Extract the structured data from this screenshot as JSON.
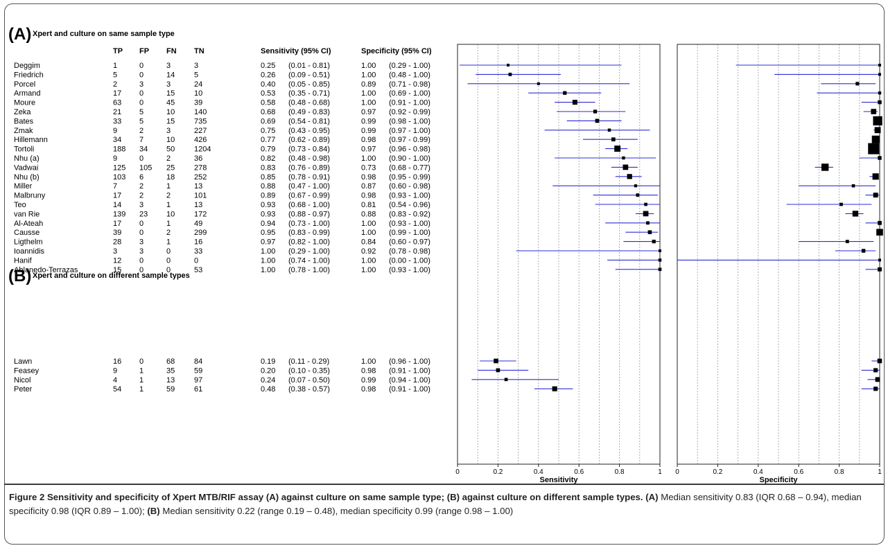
{
  "chart_data": {
    "type": "forest",
    "sections": [
      {
        "letter": "(A)",
        "title": "Xpert and culture on same sample type",
        "studies": [
          {
            "study": "Deggim",
            "tp": "1",
            "fp": "0",
            "fn": "3",
            "tn": "3",
            "sens": "0.25",
            "sens_ci": "(0.01 - 0.81)",
            "spec": "1.00",
            "spec_ci": "(0.29 - 1.00)",
            "sens_v": 0.25,
            "sens_lo": 0.01,
            "sens_hi": 0.81,
            "spec_v": 1.0,
            "spec_lo": 0.29,
            "spec_hi": 1.0
          },
          {
            "study": "Friedrich",
            "tp": "5",
            "fp": "0",
            "fn": "14",
            "tn": "5",
            "sens": "0.26",
            "sens_ci": "(0.09 - 0.51)",
            "spec": "1.00",
            "spec_ci": "(0.48 - 1.00)",
            "sens_v": 0.26,
            "sens_lo": 0.09,
            "sens_hi": 0.51,
            "spec_v": 1.0,
            "spec_lo": 0.48,
            "spec_hi": 1.0
          },
          {
            "study": "Porcel",
            "tp": "2",
            "fp": "3",
            "fn": "3",
            "tn": "24",
            "sens": "0.40",
            "sens_ci": "(0.05 - 0.85)",
            "spec": "0.89",
            "spec_ci": "(0.71 - 0.98)",
            "sens_v": 0.4,
            "sens_lo": 0.05,
            "sens_hi": 0.85,
            "spec_v": 0.89,
            "spec_lo": 0.71,
            "spec_hi": 0.98
          },
          {
            "study": "Armand",
            "tp": "17",
            "fp": "0",
            "fn": "15",
            "tn": "10",
            "sens": "0.53",
            "sens_ci": "(0.35 - 0.71)",
            "spec": "1.00",
            "spec_ci": "(0.69 - 1.00)",
            "sens_v": 0.53,
            "sens_lo": 0.35,
            "sens_hi": 0.71,
            "spec_v": 1.0,
            "spec_lo": 0.69,
            "spec_hi": 1.0
          },
          {
            "study": "Moure",
            "tp": "63",
            "fp": "0",
            "fn": "45",
            "tn": "39",
            "sens": "0.58",
            "sens_ci": "(0.48 - 0.68)",
            "spec": "1.00",
            "spec_ci": "(0.91 - 1.00)",
            "sens_v": 0.58,
            "sens_lo": 0.48,
            "sens_hi": 0.68,
            "spec_v": 1.0,
            "spec_lo": 0.91,
            "spec_hi": 1.0
          },
          {
            "study": "Zeka",
            "tp": "21",
            "fp": "5",
            "fn": "10",
            "tn": "140",
            "sens": "0.68",
            "sens_ci": "(0.49 - 0.83)",
            "spec": "0.97",
            "spec_ci": "(0.92 - 0.99)",
            "sens_v": 0.68,
            "sens_lo": 0.49,
            "sens_hi": 0.83,
            "spec_v": 0.97,
            "spec_lo": 0.92,
            "spec_hi": 0.99
          },
          {
            "study": "Bates",
            "tp": "33",
            "fp": "5",
            "fn": "15",
            "tn": "735",
            "sens": "0.69",
            "sens_ci": "(0.54 - 0.81)",
            "spec": "0.99",
            "spec_ci": "(0.98 - 1.00)",
            "sens_v": 0.69,
            "sens_lo": 0.54,
            "sens_hi": 0.81,
            "spec_v": 0.99,
            "spec_lo": 0.98,
            "spec_hi": 1.0
          },
          {
            "study": "Zmak",
            "tp": "9",
            "fp": "2",
            "fn": "3",
            "tn": "227",
            "sens": "0.75",
            "sens_ci": "(0.43 - 0.95)",
            "spec": "0.99",
            "spec_ci": "(0.97 - 1.00)",
            "sens_v": 0.75,
            "sens_lo": 0.43,
            "sens_hi": 0.95,
            "spec_v": 0.99,
            "spec_lo": 0.97,
            "spec_hi": 1.0
          },
          {
            "study": "Hillemann",
            "tp": "34",
            "fp": "7",
            "fn": "10",
            "tn": "426",
            "sens": "0.77",
            "sens_ci": "(0.62 - 0.89)",
            "spec": "0.98",
            "spec_ci": "(0.97 - 0.99)",
            "sens_v": 0.77,
            "sens_lo": 0.62,
            "sens_hi": 0.89,
            "spec_v": 0.98,
            "spec_lo": 0.97,
            "spec_hi": 0.99
          },
          {
            "study": "Tortoli",
            "tp": "188",
            "fp": "34",
            "fn": "50",
            "tn": "1204",
            "sens": "0.79",
            "sens_ci": "(0.73 - 0.84)",
            "spec": "0.97",
            "spec_ci": "(0.96 - 0.98)",
            "sens_v": 0.79,
            "sens_lo": 0.73,
            "sens_hi": 0.84,
            "spec_v": 0.97,
            "spec_lo": 0.96,
            "spec_hi": 0.98
          },
          {
            "study": "Nhu (a)",
            "tp": "9",
            "fp": "0",
            "fn": "2",
            "tn": "36",
            "sens": "0.82",
            "sens_ci": "(0.48 - 0.98)",
            "spec": "1.00",
            "spec_ci": "(0.90 - 1.00)",
            "sens_v": 0.82,
            "sens_lo": 0.48,
            "sens_hi": 0.98,
            "spec_v": 1.0,
            "spec_lo": 0.9,
            "spec_hi": 1.0
          },
          {
            "study": "Vadwai",
            "tp": "125",
            "fp": "105",
            "fn": "25",
            "tn": "278",
            "sens": "0.83",
            "sens_ci": "(0.76 - 0.89)",
            "spec": "0.73",
            "spec_ci": "(0.68 - 0.77)",
            "sens_v": 0.83,
            "sens_lo": 0.76,
            "sens_hi": 0.89,
            "spec_v": 0.73,
            "spec_lo": 0.68,
            "spec_hi": 0.77
          },
          {
            "study": "Nhu (b)",
            "tp": "103",
            "fp": "6",
            "fn": "18",
            "tn": "252",
            "sens": "0.85",
            "sens_ci": "(0.78 - 0.91)",
            "spec": "0.98",
            "spec_ci": "(0.95 - 0.99)",
            "sens_v": 0.85,
            "sens_lo": 0.78,
            "sens_hi": 0.91,
            "spec_v": 0.98,
            "spec_lo": 0.95,
            "spec_hi": 0.99
          },
          {
            "study": "Miller",
            "tp": "7",
            "fp": "2",
            "fn": "1",
            "tn": "13",
            "sens": "0.88",
            "sens_ci": "(0.47 - 1.00)",
            "spec": "0.87",
            "spec_ci": "(0.60 - 0.98)",
            "sens_v": 0.88,
            "sens_lo": 0.47,
            "sens_hi": 1.0,
            "spec_v": 0.87,
            "spec_lo": 0.6,
            "spec_hi": 0.98
          },
          {
            "study": "Malbruny",
            "tp": "17",
            "fp": "2",
            "fn": "2",
            "tn": "101",
            "sens": "0.89",
            "sens_ci": "(0.67 - 0.99)",
            "spec": "0.98",
            "spec_ci": "(0.93 - 1.00)",
            "sens_v": 0.89,
            "sens_lo": 0.67,
            "sens_hi": 0.99,
            "spec_v": 0.98,
            "spec_lo": 0.93,
            "spec_hi": 1.0
          },
          {
            "study": "Teo",
            "tp": "14",
            "fp": "3",
            "fn": "1",
            "tn": "13",
            "sens": "0.93",
            "sens_ci": "(0.68 - 1.00)",
            "spec": "0.81",
            "spec_ci": "(0.54 - 0.96)",
            "sens_v": 0.93,
            "sens_lo": 0.68,
            "sens_hi": 1.0,
            "spec_v": 0.81,
            "spec_lo": 0.54,
            "spec_hi": 0.96
          },
          {
            "study": "van Rie",
            "tp": "139",
            "fp": "23",
            "fn": "10",
            "tn": "172",
            "sens": "0.93",
            "sens_ci": "(0.88 - 0.97)",
            "spec": "0.88",
            "spec_ci": "(0.83 - 0.92)",
            "sens_v": 0.93,
            "sens_lo": 0.88,
            "sens_hi": 0.97,
            "spec_v": 0.88,
            "spec_lo": 0.83,
            "spec_hi": 0.92
          },
          {
            "study": "Al-Ateah",
            "tp": "17",
            "fp": "0",
            "fn": "1",
            "tn": "49",
            "sens": "0.94",
            "sens_ci": "(0.73 - 1.00)",
            "spec": "1.00",
            "spec_ci": "(0.93 - 1.00)",
            "sens_v": 0.94,
            "sens_lo": 0.73,
            "sens_hi": 1.0,
            "spec_v": 1.0,
            "spec_lo": 0.93,
            "spec_hi": 1.0
          },
          {
            "study": "Causse",
            "tp": "39",
            "fp": "0",
            "fn": "2",
            "tn": "299",
            "sens": "0.95",
            "sens_ci": "(0.83 - 0.99)",
            "spec": "1.00",
            "spec_ci": "(0.99 - 1.00)",
            "sens_v": 0.95,
            "sens_lo": 0.83,
            "sens_hi": 0.99,
            "spec_v": 1.0,
            "spec_lo": 0.99,
            "spec_hi": 1.0
          },
          {
            "study": "Ligthelm",
            "tp": "28",
            "fp": "3",
            "fn": "1",
            "tn": "16",
            "sens": "0.97",
            "sens_ci": "(0.82 - 1.00)",
            "spec": "0.84",
            "spec_ci": "(0.60 - 0.97)",
            "sens_v": 0.97,
            "sens_lo": 0.82,
            "sens_hi": 1.0,
            "spec_v": 0.84,
            "spec_lo": 0.6,
            "spec_hi": 0.97
          },
          {
            "study": "Ioannidis",
            "tp": "3",
            "fp": "3",
            "fn": "0",
            "tn": "33",
            "sens": "1.00",
            "sens_ci": "(0.29 - 1.00)",
            "spec": "0.92",
            "spec_ci": "(0.78 - 0.98)",
            "sens_v": 1.0,
            "sens_lo": 0.29,
            "sens_hi": 1.0,
            "spec_v": 0.92,
            "spec_lo": 0.78,
            "spec_hi": 0.98
          },
          {
            "study": "Hanif",
            "tp": "12",
            "fp": "0",
            "fn": "0",
            "tn": "0",
            "sens": "1.00",
            "sens_ci": "(0.74 - 1.00)",
            "spec": "1.00",
            "spec_ci": "(0.00 - 1.00)",
            "sens_v": 1.0,
            "sens_lo": 0.74,
            "sens_hi": 1.0,
            "spec_v": 1.0,
            "spec_lo": 0.0,
            "spec_hi": 1.0
          },
          {
            "study": "Ablanedo-Terrazas",
            "tp": "15",
            "fp": "0",
            "fn": "0",
            "tn": "53",
            "sens": "1.00",
            "sens_ci": "(0.78 - 1.00)",
            "spec": "1.00",
            "spec_ci": "(0.93 - 1.00)",
            "sens_v": 1.0,
            "sens_lo": 0.78,
            "sens_hi": 1.0,
            "spec_v": 1.0,
            "spec_lo": 0.93,
            "spec_hi": 1.0
          }
        ]
      },
      {
        "letter": "(B)",
        "title": "Xpert and culture on different sample types",
        "studies": [
          {
            "study": "Lawn",
            "tp": "16",
            "fp": "0",
            "fn": "68",
            "tn": "84",
            "sens": "0.19",
            "sens_ci": "(0.11 - 0.29)",
            "spec": "1.00",
            "spec_ci": "(0.96 - 1.00)",
            "sens_v": 0.19,
            "sens_lo": 0.11,
            "sens_hi": 0.29,
            "spec_v": 1.0,
            "spec_lo": 0.96,
            "spec_hi": 1.0
          },
          {
            "study": "Feasey",
            "tp": "9",
            "fp": "1",
            "fn": "35",
            "tn": "59",
            "sens": "0.20",
            "sens_ci": "(0.10 - 0.35)",
            "spec": "0.98",
            "spec_ci": "(0.91 - 1.00)",
            "sens_v": 0.2,
            "sens_lo": 0.1,
            "sens_hi": 0.35,
            "spec_v": 0.98,
            "spec_lo": 0.91,
            "spec_hi": 1.0
          },
          {
            "study": "Nicol",
            "tp": "4",
            "fp": "1",
            "fn": "13",
            "tn": "97",
            "sens": "0.24",
            "sens_ci": "(0.07 - 0.50)",
            "spec": "0.99",
            "spec_ci": "(0.94 - 1.00)",
            "sens_v": 0.24,
            "sens_lo": 0.07,
            "sens_hi": 0.5,
            "spec_v": 0.99,
            "spec_lo": 0.94,
            "spec_hi": 1.0
          },
          {
            "study": "Peter",
            "tp": "54",
            "fp": "1",
            "fn": "59",
            "tn": "61",
            "sens": "0.48",
            "sens_ci": "(0.38 - 0.57)",
            "spec": "0.98",
            "spec_ci": "(0.91 - 1.00)",
            "sens_v": 0.48,
            "sens_lo": 0.38,
            "sens_hi": 0.57,
            "spec_v": 0.98,
            "spec_lo": 0.91,
            "spec_hi": 1.0
          }
        ]
      }
    ],
    "columns": [
      "TP",
      "FP",
      "FN",
      "TN",
      "Sensitivity (95% CI)",
      "Specificity (95% CI)"
    ],
    "panels": [
      {
        "xlabel": "Sensitivity",
        "xlim": [
          0,
          1
        ],
        "ticks": [
          "0",
          "0.2",
          "0.4",
          "0.6",
          "0.8",
          "1"
        ]
      },
      {
        "xlabel": "Specificity",
        "xlim": [
          0,
          1
        ],
        "ticks": [
          "0",
          "0.2",
          "0.4",
          "0.6",
          "0.8",
          "1"
        ]
      }
    ],
    "grid": "dotted vertical every 0.1",
    "colors": {
      "ci_line": "#2b2bd9",
      "marker": "#000000",
      "grid": "#9a9a9a"
    }
  },
  "caption": {
    "bold": "Figure 2 Sensitivity and specificity of Xpert MTB/RIF assay (A) against culture on same sample type; (B) against culture on different sample types.",
    "a_label": "(A)",
    "a_text": " Median sensitivity 0.83 (IQR 0.68 – 0.94), median specificity 0.98 (IQR 0.89 – 1.00); ",
    "b_label": "(B)",
    "b_text": " Median sensitivity 0.22 (range 0.19 – 0.48), median specificity 0.99 (range 0.98 – 1.00)"
  }
}
